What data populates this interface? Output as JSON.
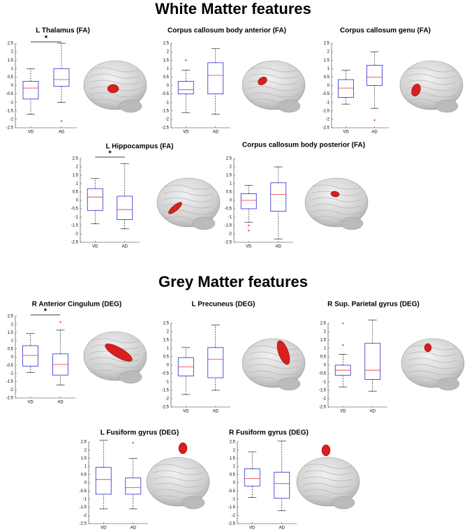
{
  "sections": [
    {
      "title": "White Matter features"
    },
    {
      "title": "Grey Matter features"
    }
  ],
  "chart_data": [
    {
      "type": "box",
      "title": "L Thalamus (FA)",
      "categories": [
        "VD",
        "AD"
      ],
      "annotation": "*",
      "boxes": [
        {
          "low": -1.7,
          "q1": -0.8,
          "median": -0.15,
          "q3": 0.25,
          "high": 1.0,
          "outliers": []
        },
        {
          "low": -1.0,
          "q1": -0.05,
          "median": 0.35,
          "q3": 1.0,
          "high": 2.5,
          "outliers": [
            -2.1
          ]
        }
      ],
      "box_color": "#2a2ad0",
      "median_color": "#e8303a",
      "ylim": [
        -2.5,
        2.5
      ],
      "yticks": [
        2.5,
        2,
        1.5,
        1,
        0.5,
        0,
        -0.5,
        -1,
        -1.5,
        -2,
        -2.5
      ]
    },
    {
      "type": "box",
      "title": "Corpus callosum body anterior (FA)",
      "categories": [
        "VD",
        "AD"
      ],
      "boxes": [
        {
          "low": -1.6,
          "q1": -0.5,
          "median": -0.25,
          "q3": 0.25,
          "high": 0.9,
          "outliers": [
            1.5
          ]
        },
        {
          "low": -1.7,
          "q1": -0.5,
          "median": 0.6,
          "q3": 1.35,
          "high": 2.2,
          "outliers": []
        }
      ],
      "box_color": "#2a2ad0",
      "median_color": "#e8303a",
      "ylim": [
        -2.5,
        2.5
      ],
      "yticks": [
        2.5,
        2,
        1.5,
        1,
        0.5,
        0,
        -0.5,
        -1,
        -1.5,
        -2,
        -2.5
      ]
    },
    {
      "type": "box",
      "title": "Corpus callosum genu (FA)",
      "categories": [
        "VD",
        "AD"
      ],
      "boxes": [
        {
          "low": -1.1,
          "q1": -0.7,
          "median": -0.15,
          "q3": 0.35,
          "high": 0.9,
          "outliers": []
        },
        {
          "low": -1.35,
          "q1": 0.0,
          "median": 0.5,
          "q3": 1.2,
          "high": 2.0,
          "outliers": [
            -2.05
          ]
        }
      ],
      "box_color": "#2a2ad0",
      "median_color": "#e8303a",
      "ylim": [
        -2.5,
        2.5
      ],
      "yticks": [
        2.5,
        2,
        1.5,
        1,
        0.5,
        0,
        -0.5,
        -1,
        -1.5,
        -2,
        -2.5
      ]
    },
    {
      "type": "box",
      "title": "L Hippocampus (FA)",
      "categories": [
        "VD",
        "AD"
      ],
      "annotation": "*",
      "boxes": [
        {
          "low": -1.4,
          "q1": -0.6,
          "median": 0.2,
          "q3": 0.7,
          "high": 1.3,
          "outliers": []
        },
        {
          "low": -1.7,
          "q1": -1.15,
          "median": -0.55,
          "q3": 0.25,
          "high": 2.2,
          "outliers": []
        }
      ],
      "box_color": "#2a2ad0",
      "median_color": "#e8303a",
      "ylim": [
        -2.5,
        2.5
      ],
      "yticks": [
        2.5,
        2,
        1.5,
        1,
        0.5,
        0,
        -0.5,
        -1,
        -1.5,
        -2,
        -2.5
      ]
    },
    {
      "type": "box",
      "title": "Corpus callosum body posterior (FA)",
      "categories": [
        "VD",
        "AD"
      ],
      "boxes": [
        {
          "low": -1.3,
          "q1": -0.5,
          "median": 0.0,
          "q3": 0.4,
          "high": 0.9,
          "outliers": [
            -1.5,
            -1.8
          ]
        },
        {
          "low": -2.3,
          "q1": -0.65,
          "median": 0.35,
          "q3": 1.05,
          "high": 2.0,
          "outliers": []
        }
      ],
      "box_color": "#2a2ad0",
      "median_color": "#e8303a",
      "ylim": [
        -2.5,
        2.5
      ],
      "yticks": [
        2.5,
        2,
        1.5,
        1,
        0.5,
        0,
        -0.5,
        -1,
        -1.5,
        -2,
        -2.5
      ]
    },
    {
      "type": "box",
      "title": "R Anterior Cingulum (DEG)",
      "categories": [
        "VD",
        "AD"
      ],
      "annotation": "*",
      "boxes": [
        {
          "low": -0.95,
          "q1": -0.55,
          "median": 0.1,
          "q3": 0.7,
          "high": 1.45,
          "outliers": []
        },
        {
          "low": -1.7,
          "q1": -1.1,
          "median": -0.45,
          "q3": 0.2,
          "high": 1.65,
          "outliers": [
            2.15
          ]
        }
      ],
      "box_color": "#2a2ad0",
      "median_color": "#e8303a",
      "ylim": [
        -2.5,
        2.5
      ],
      "yticks": [
        2.5,
        2,
        1.5,
        1,
        0.5,
        0,
        -0.5,
        -1,
        -1.5,
        -2,
        -2.5
      ]
    },
    {
      "type": "box",
      "title": "L Precuneus (DEG)",
      "categories": [
        "VD",
        "AD"
      ],
      "boxes": [
        {
          "low": -1.75,
          "q1": -0.65,
          "median": -0.1,
          "q3": 0.45,
          "high": 1.05,
          "outliers": []
        },
        {
          "low": -1.5,
          "q1": -0.75,
          "median": 0.35,
          "q3": 1.05,
          "high": 2.4,
          "outliers": []
        }
      ],
      "box_color": "#2a2ad0",
      "median_color": "#e8303a",
      "ylim": [
        -2.5,
        2.5
      ],
      "yticks": [
        2.5,
        2,
        1.5,
        1,
        0.5,
        0,
        -0.5,
        -1,
        -1.5,
        -2,
        -2.5
      ]
    },
    {
      "type": "box",
      "title": "R Sup. Parietal gyrus (DEG)",
      "categories": [
        "VD",
        "AD"
      ],
      "boxes": [
        {
          "low": -1.3,
          "q1": -0.6,
          "median": -0.3,
          "q3": 0.0,
          "high": 0.65,
          "outliers": [
            1.2,
            2.5
          ]
        },
        {
          "low": -1.55,
          "q1": -0.85,
          "median": -0.3,
          "q3": 1.3,
          "high": 2.7,
          "outliers": []
        }
      ],
      "box_color": "#2a2ad0",
      "median_color": "#e8303a",
      "ylim": [
        -2.5,
        2.5
      ],
      "yticks": [
        2.5,
        2,
        1.5,
        1,
        0.5,
        0,
        -0.5,
        -1,
        -1.5,
        -2,
        -2.5
      ]
    },
    {
      "type": "box",
      "title": "L Fusiform gyrus (DEG)",
      "categories": [
        "VD",
        "AD"
      ],
      "boxes": [
        {
          "low": -1.6,
          "q1": -0.7,
          "median": 0.2,
          "q3": 0.95,
          "high": 2.6,
          "outliers": []
        },
        {
          "low": -1.6,
          "q1": -0.7,
          "median": -0.3,
          "q3": 0.3,
          "high": 1.5,
          "outliers": [
            2.45
          ]
        }
      ],
      "box_color": "#2a2ad0",
      "median_color": "#e8303a",
      "ylim": [
        -2.5,
        2.5
      ],
      "yticks": [
        2.5,
        2,
        1.5,
        1,
        0.5,
        0,
        -0.5,
        -1,
        -1.5,
        -2,
        -2.5
      ]
    },
    {
      "type": "box",
      "title": "R Fusiform gyrus (DEG)",
      "categories": [
        "VD",
        "AD"
      ],
      "boxes": [
        {
          "low": -0.9,
          "q1": -0.2,
          "median": 0.25,
          "q3": 0.85,
          "high": 1.9,
          "outliers": []
        },
        {
          "low": -1.7,
          "q1": -0.95,
          "median": -0.05,
          "q3": 0.65,
          "high": 2.55,
          "outliers": []
        }
      ],
      "box_color": "#2a2ad0",
      "median_color": "#e8303a",
      "ylim": [
        -2.5,
        2.5
      ],
      "yticks": [
        2.5,
        2,
        1.5,
        1,
        0.5,
        0,
        -0.5,
        -1,
        -1.5,
        -2,
        -2.5
      ]
    }
  ]
}
